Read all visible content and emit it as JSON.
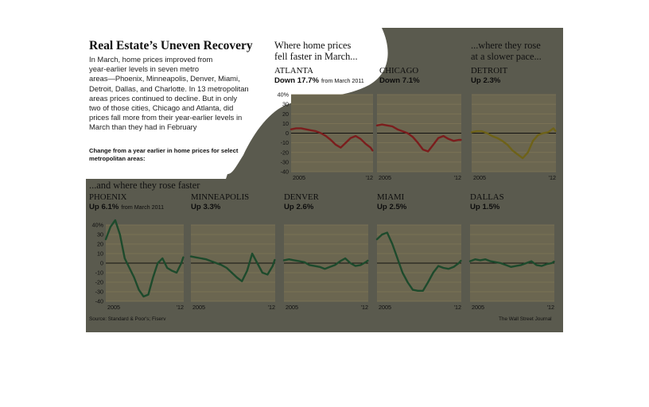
{
  "title": "Real Estate’s Uneven Recovery",
  "intro_lines": [
    "In March, home prices improved from",
    "year-earlier levels in seven metro",
    "areas—Phoenix, Minneapolis, Denver, Miami,",
    "Detroit, Dallas, and Charlotte. In 13 metropolitan",
    "areas prices continued to decline. But in only",
    "two of those cities, Chicago and Atlanta, did",
    "prices fall more from their year-earlier levels in",
    "March than they had in February"
  ],
  "subhead_lines": [
    "Change from a year earlier in home prices for select",
    "metropolitan areas:"
  ],
  "section_fell": [
    "Where home prices",
    "fell faster in March..."
  ],
  "section_slower": [
    "...where they rose",
    "at a slower pace..."
  ],
  "section_faster": "...and where they rose faster",
  "source": "Source: Standard & Poor's; Fiserv",
  "credit": "The Wall Street Journal",
  "colors": {
    "background": "#5a5a4e",
    "plot": "#6b6650",
    "grid": "#7f7757",
    "decline": "#7b1d1d",
    "slower": "#6e6218",
    "faster": "#1d4a2c",
    "paper": "#ffffff"
  },
  "chart_data": [
    {
      "type": "line",
      "name": "ATLANTA",
      "change": "Down 17.7%",
      "note": "from March 2011",
      "color_key": "decline",
      "ylim": [
        -40,
        40
      ],
      "y_ticks": [
        "40%",
        "30",
        "20",
        "10",
        "0",
        "-10",
        "-20",
        "-30",
        "-40"
      ],
      "x_ticks": [
        "2005",
        "'12"
      ],
      "x": [
        2004.0,
        2004.5,
        2005.0,
        2005.5,
        2006.0,
        2006.5,
        2007.0,
        2007.5,
        2008.0,
        2008.5,
        2009.0,
        2009.5,
        2010.0,
        2010.5,
        2011.0,
        2011.5,
        2012.0,
        2012.2
      ],
      "y": [
        4,
        5,
        5,
        4,
        3,
        2,
        0,
        -3,
        -7,
        -12,
        -15,
        -10,
        -5,
        -3,
        -6,
        -11,
        -15,
        -18
      ]
    },
    {
      "type": "line",
      "name": "CHICAGO",
      "change": "Down 7.1%",
      "note": "",
      "color_key": "decline",
      "ylim": [
        -40,
        40
      ],
      "y_ticks": [],
      "x_ticks": [
        "2005",
        "'12"
      ],
      "x": [
        2004.0,
        2004.5,
        2005.0,
        2005.5,
        2006.0,
        2006.5,
        2007.0,
        2007.5,
        2008.0,
        2008.5,
        2009.0,
        2009.5,
        2010.0,
        2010.5,
        2011.0,
        2011.5,
        2012.0,
        2012.2
      ],
      "y": [
        8,
        9,
        8,
        7,
        4,
        2,
        0,
        -4,
        -10,
        -17,
        -19,
        -12,
        -5,
        -3,
        -6,
        -8,
        -7,
        -7
      ]
    },
    {
      "type": "line",
      "name": "DETROIT",
      "change": "Up 2.3%",
      "note": "",
      "color_key": "slower",
      "ylim": [
        -40,
        40
      ],
      "y_ticks": [],
      "x_ticks": [
        "2005",
        "'12"
      ],
      "x": [
        2004.0,
        2004.5,
        2005.0,
        2005.5,
        2006.0,
        2006.5,
        2007.0,
        2007.5,
        2008.0,
        2008.5,
        2009.0,
        2009.5,
        2010.0,
        2010.5,
        2011.0,
        2011.5,
        2012.0,
        2012.2
      ],
      "y": [
        1,
        2,
        2,
        0,
        -3,
        -5,
        -8,
        -12,
        -18,
        -22,
        -26,
        -20,
        -8,
        -2,
        0,
        1,
        5,
        2.3
      ]
    },
    {
      "type": "line",
      "name": "PHOENIX",
      "change": "Up 6.1%",
      "note": "from March 2011",
      "color_key": "faster",
      "ylim": [
        -40,
        40
      ],
      "y_ticks": [
        "40%",
        "30",
        "20",
        "10",
        "0",
        "-10",
        "-20",
        "-30",
        "-40"
      ],
      "x_ticks": [
        "2005",
        "'12"
      ],
      "x": [
        2004.0,
        2004.5,
        2005.0,
        2005.5,
        2006.0,
        2006.5,
        2007.0,
        2007.5,
        2008.0,
        2008.5,
        2009.0,
        2009.5,
        2010.0,
        2010.5,
        2011.0,
        2011.5,
        2012.0,
        2012.2
      ],
      "y": [
        25,
        38,
        45,
        30,
        5,
        -5,
        -15,
        -28,
        -35,
        -33,
        -15,
        0,
        5,
        -5,
        -8,
        -10,
        0,
        6.1
      ]
    },
    {
      "type": "line",
      "name": "MINNEAPOLIS",
      "change": "Up 3.3%",
      "note": "",
      "color_key": "faster",
      "ylim": [
        -40,
        40
      ],
      "y_ticks": [],
      "x_ticks": [
        "2005",
        "'12"
      ],
      "x": [
        2004.0,
        2004.5,
        2005.0,
        2005.5,
        2006.0,
        2006.5,
        2007.0,
        2007.5,
        2008.0,
        2008.5,
        2009.0,
        2009.5,
        2010.0,
        2010.5,
        2011.0,
        2011.5,
        2012.0,
        2012.2
      ],
      "y": [
        7,
        6,
        5,
        4,
        2,
        0,
        -2,
        -5,
        -10,
        -15,
        -19,
        -8,
        10,
        0,
        -10,
        -12,
        -3,
        3.3
      ]
    },
    {
      "type": "line",
      "name": "DENVER",
      "change": "Up 2.6%",
      "note": "",
      "color_key": "faster",
      "ylim": [
        -40,
        40
      ],
      "y_ticks": [],
      "x_ticks": [
        "2005",
        "'12"
      ],
      "x": [
        2004.0,
        2004.5,
        2005.0,
        2005.5,
        2006.0,
        2006.5,
        2007.0,
        2007.5,
        2008.0,
        2008.5,
        2009.0,
        2009.5,
        2010.0,
        2010.5,
        2011.0,
        2011.5,
        2012.0,
        2012.2
      ],
      "y": [
        3,
        4,
        3,
        2,
        1,
        -2,
        -3,
        -4,
        -6,
        -4,
        -2,
        2,
        5,
        0,
        -3,
        -2,
        1,
        2.6
      ]
    },
    {
      "type": "line",
      "name": "MIAMI",
      "change": "Up 2.5%",
      "note": "",
      "color_key": "faster",
      "ylim": [
        -40,
        40
      ],
      "y_ticks": [],
      "x_ticks": [
        "2005",
        "'12"
      ],
      "x": [
        2004.0,
        2004.5,
        2005.0,
        2005.5,
        2006.0,
        2006.5,
        2007.0,
        2007.5,
        2008.0,
        2008.5,
        2009.0,
        2009.5,
        2010.0,
        2010.5,
        2011.0,
        2011.5,
        2012.0,
        2012.2
      ],
      "y": [
        25,
        30,
        32,
        20,
        5,
        -10,
        -20,
        -28,
        -29,
        -29,
        -20,
        -10,
        -3,
        -5,
        -6,
        -4,
        0,
        2.5
      ]
    },
    {
      "type": "line",
      "name": "DALLAS",
      "change": "Up 1.5%",
      "note": "",
      "color_key": "faster",
      "ylim": [
        -40,
        40
      ],
      "y_ticks": [],
      "x_ticks": [
        "2005",
        "'12"
      ],
      "x": [
        2004.0,
        2004.5,
        2005.0,
        2005.5,
        2006.0,
        2006.5,
        2007.0,
        2007.5,
        2008.0,
        2008.5,
        2009.0,
        2009.5,
        2010.0,
        2010.5,
        2011.0,
        2011.5,
        2012.0,
        2012.2
      ],
      "y": [
        2,
        4,
        3,
        4,
        2,
        1,
        0,
        -2,
        -4,
        -3,
        -2,
        0,
        2,
        -2,
        -3,
        -1,
        0,
        1.5
      ]
    }
  ]
}
